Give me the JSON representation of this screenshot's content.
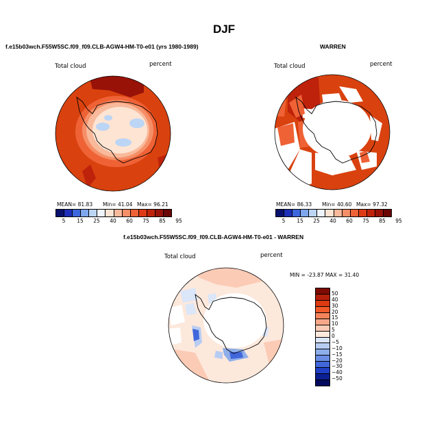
{
  "page": {
    "title": "DJF"
  },
  "panels": {
    "left": {
      "title": "f.e15b03wch.F55W5SC.f09_f09.CLB-AGW4-HM-T0-e01 (yrs 1980-1989)",
      "variable": "Total cloud",
      "units": "percent",
      "stats": {
        "mean": "MEAN=  81.83",
        "min": "Min=  41.04",
        "max": "Max=  96.21"
      }
    },
    "right": {
      "title": "WARREN",
      "variable": "Total cloud",
      "units": "percent",
      "stats": {
        "mean": "MEAN=  86.33",
        "min": "Min=  40.60",
        "max": "Max=  97.32"
      }
    },
    "diff": {
      "title": "f.e15b03wch.F55W5SC.f09_f09.CLB-AGW4-HM-T0-e01 - WARREN",
      "variable": "Total cloud",
      "units": "percent",
      "minmax": "MIN = -23.87  MAX =  31.40"
    }
  },
  "colorbar_main": {
    "labels": [
      "5",
      "15",
      "25",
      "40",
      "60",
      "75",
      "85",
      "95"
    ],
    "colors": [
      "#08106e",
      "#1d2fb8",
      "#3d67dd",
      "#7ea6ec",
      "#bcd5f5",
      "#eef3fc",
      "#fde4d3",
      "#f9b99b",
      "#f58f67",
      "#ef6236",
      "#de3a15",
      "#bf220b",
      "#981208",
      "#6a0606"
    ]
  },
  "colorbar_diff": {
    "labels": [
      "50",
      "40",
      "30",
      "20",
      "15",
      "10",
      "5",
      "0",
      "−5",
      "−10",
      "−15",
      "−20",
      "−30",
      "−40",
      "−50"
    ],
    "colors": [
      "#7d0b04",
      "#b4200a",
      "#dd3a12",
      "#f25a2a",
      "#f6845a",
      "#f8a889",
      "#fbcbb5",
      "#fde8dc",
      "#dbe6f8",
      "#b7ccf2",
      "#8eaeea",
      "#6a8ee3",
      "#4167db",
      "#1f3fc6",
      "#0b1f93",
      "#020a5e"
    ]
  },
  "colors": {
    "ocean_high": "#d9420f",
    "ice_low": "#ffffff",
    "coast": "#000000"
  }
}
